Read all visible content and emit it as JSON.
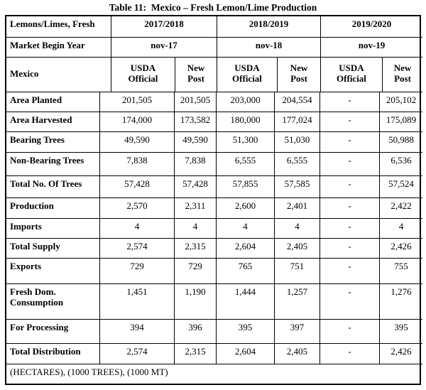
{
  "title": "Table 11:  Mexico – Fresh Lemon/Lime Production",
  "table": {
    "corner_labels": [
      "Lemons/Limes, Fresh",
      "Market Begin Year",
      "Mexico"
    ],
    "year_groups": [
      {
        "year": "2017/2018",
        "market_begin": "nov-17"
      },
      {
        "year": "2018/2019",
        "market_begin": "nov-18"
      },
      {
        "year": "2019/2020",
        "market_begin": "nov-19"
      }
    ],
    "sub_headers": [
      "USDA\nOfficial",
      "New\nPost",
      "USDA\nOfficial",
      "New\nPost",
      "USDA\nOfficial",
      "New\nPost"
    ],
    "rows": [
      {
        "label": "Area Planted",
        "values": [
          "201,505",
          "201,505",
          "203,000",
          "204,554",
          "-",
          "205,102"
        ]
      },
      {
        "label": "Area Harvested",
        "values": [
          "174,000",
          "173,582",
          "180,000",
          "177,024",
          "-",
          "175,089"
        ]
      },
      {
        "label": "Bearing Trees",
        "values": [
          "49,590",
          "49,590",
          "51,300",
          "51,030",
          "-",
          "50,988"
        ]
      },
      {
        "label": "Non-Bearing Trees",
        "values": [
          "7,838",
          "7,838",
          "6,555",
          "6,555",
          "-",
          "6,536"
        ]
      },
      {
        "label": "Total No. Of Trees",
        "values": [
          "57,428",
          "57,428",
          "57,855",
          "57,585",
          "-",
          "57,524"
        ]
      },
      {
        "label": "Production",
        "values": [
          "2,570",
          "2,311",
          "2,600",
          "2,401",
          "-",
          "2,422"
        ]
      },
      {
        "label": "Imports",
        "values": [
          "4",
          "4",
          "4",
          "4",
          "-",
          "4"
        ]
      },
      {
        "label": "Total Supply",
        "values": [
          "2,574",
          "2,315",
          "2,604",
          "2,405",
          "-",
          "2,426"
        ]
      },
      {
        "label": "Exports",
        "values": [
          "729",
          "729",
          "765",
          "751",
          "-",
          "755"
        ]
      },
      {
        "label": "Fresh Dom.\nConsumption",
        "values": [
          "1,451",
          "1,190",
          "1,444",
          "1,257",
          "-",
          "1,276"
        ]
      },
      {
        "label": "For Processing",
        "values": [
          "394",
          "396",
          "395",
          "397",
          "-",
          "395"
        ]
      },
      {
        "label": "Total Distribution",
        "values": [
          "2,574",
          "2,315",
          "2,604",
          "2,405",
          "-",
          "2,426"
        ]
      }
    ],
    "footnote": "(HECTARES), (1000 TREES), (1000 MT)"
  }
}
